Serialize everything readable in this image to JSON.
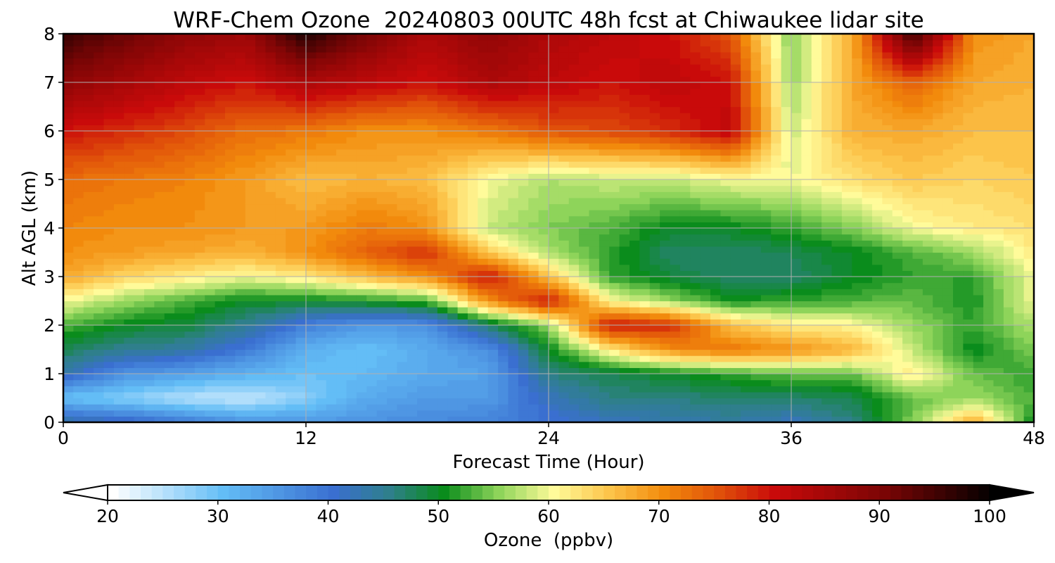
{
  "chart_data": {
    "type": "heatmap",
    "title": "WRF-Chem Ozone  20240803 00UTC 48h fcst at Chiwaukee lidar site",
    "xlabel": "Forecast Time (Hour)",
    "ylabel": "Alt AGL (km)",
    "xlim": [
      0,
      48
    ],
    "ylim": [
      0,
      8
    ],
    "xticks": [
      0,
      12,
      24,
      36,
      48
    ],
    "yticks": [
      0,
      1,
      2,
      3,
      4,
      5,
      6,
      7,
      8
    ],
    "grid": true,
    "colorbar": {
      "label": "Ozone  (ppbv)",
      "min": 20,
      "max": 100,
      "step": 1,
      "ticks": [
        20,
        30,
        40,
        50,
        60,
        70,
        80,
        90,
        100
      ],
      "extend": "both",
      "color_stops": [
        [
          20,
          "#ffffff"
        ],
        [
          30,
          "#63bdf6"
        ],
        [
          40,
          "#3a6fd0"
        ],
        [
          45,
          "#2f7f8c"
        ],
        [
          50,
          "#0a8c1c"
        ],
        [
          55,
          "#8ed45a"
        ],
        [
          60,
          "#fffb9a"
        ],
        [
          65,
          "#fcc44a"
        ],
        [
          70,
          "#f28a0c"
        ],
        [
          75,
          "#e0500a"
        ],
        [
          80,
          "#c90a0a"
        ],
        [
          90,
          "#7a0505"
        ],
        [
          100,
          "#000000"
        ]
      ]
    },
    "x_hours": [
      0,
      3,
      6,
      9,
      12,
      15,
      18,
      21,
      24,
      27,
      30,
      33,
      36,
      39,
      42,
      45,
      48
    ],
    "alt_km": [
      0,
      0.5,
      1,
      1.5,
      2,
      2.5,
      3,
      3.5,
      4,
      5,
      6,
      7,
      8
    ],
    "z": [
      [
        44,
        30,
        43,
        48,
        53,
        60,
        68,
        70,
        71,
        73,
        80,
        88,
        96
      ],
      [
        42,
        28,
        36,
        45,
        50,
        56,
        64,
        69,
        70,
        72,
        78,
        85,
        92
      ],
      [
        39,
        25,
        34,
        44,
        49,
        53,
        62,
        68,
        70,
        71,
        76,
        82,
        88
      ],
      [
        36,
        24,
        32,
        39,
        45,
        50,
        60,
        67,
        69,
        69,
        73,
        80,
        86
      ],
      [
        35,
        28,
        30,
        32,
        38,
        50,
        62,
        70,
        69,
        66,
        72,
        84,
        98
      ],
      [
        36,
        33,
        31,
        30,
        35,
        51,
        66,
        74,
        72,
        67,
        70,
        82,
        90
      ],
      [
        37,
        35,
        33,
        33,
        36,
        53,
        70,
        78,
        70,
        66,
        70,
        80,
        84
      ],
      [
        38,
        35,
        34,
        36,
        47,
        70,
        80,
        65,
        58,
        60,
        72,
        84,
        88
      ],
      [
        40,
        42,
        46,
        50,
        56,
        80,
        66,
        57,
        55,
        57,
        75,
        82,
        84
      ],
      [
        42,
        46,
        48,
        62,
        80,
        61,
        52,
        52,
        53,
        58,
        76,
        80,
        82
      ],
      [
        43,
        46,
        50,
        70,
        78,
        56,
        49,
        47,
        50,
        58,
        78,
        82,
        80
      ],
      [
        44,
        47,
        52,
        72,
        66,
        51,
        47,
        47,
        50,
        60,
        82,
        80,
        75
      ],
      [
        42,
        47,
        54,
        70,
        62,
        52,
        47,
        48,
        52,
        60,
        58,
        56,
        55
      ],
      [
        46,
        48,
        54,
        67,
        61,
        53,
        50,
        50,
        55,
        63,
        67,
        68,
        67
      ],
      [
        55,
        54,
        62,
        58,
        56,
        54,
        52,
        53,
        60,
        65,
        68,
        74,
        96
      ],
      [
        68,
        56,
        54,
        50,
        52,
        51,
        52,
        56,
        62,
        64,
        66,
        68,
        70
      ],
      [
        50,
        53,
        52,
        55,
        57,
        60,
        60,
        62,
        63,
        65,
        66,
        67,
        68
      ]
    ]
  }
}
